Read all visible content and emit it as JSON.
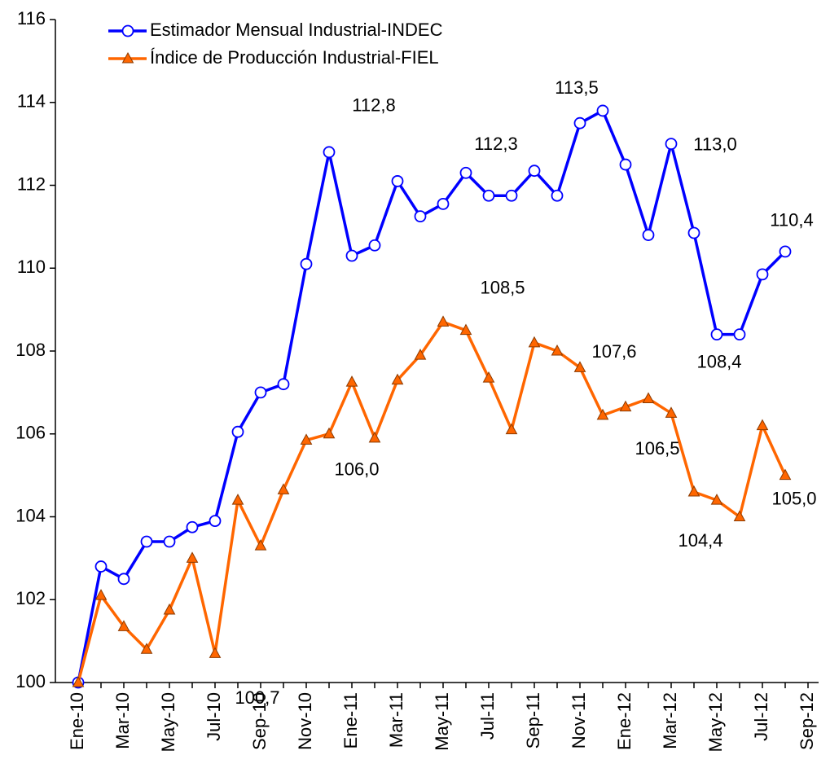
{
  "chart_data": {
    "type": "line",
    "categories": [
      "Ene-10",
      null,
      "Mar-10",
      null,
      "May-10",
      null,
      "Jul-10",
      null,
      "Sep-10",
      null,
      "Nov-10",
      null,
      "Ene-11",
      null,
      "Mar-11",
      null,
      "May-11",
      null,
      "Jul-11",
      null,
      "Sep-11",
      null,
      "Nov-11",
      null,
      "Ene-12",
      null,
      "Mar-12",
      null,
      "May-12",
      null,
      "Jul-12",
      null,
      "Sep-12"
    ],
    "series": [
      {
        "name": "Estimador Mensual Industrial-INDEC",
        "color": "#0000ff",
        "marker": "circle",
        "values": [
          100.0,
          102.8,
          102.5,
          103.4,
          103.4,
          103.75,
          103.9,
          106.05,
          107.0,
          107.2,
          110.1,
          112.8,
          110.3,
          110.55,
          112.1,
          111.25,
          111.55,
          112.3,
          111.75,
          111.75,
          112.35,
          111.75,
          113.5,
          113.8,
          112.5,
          110.8,
          113.0,
          110.85,
          108.4,
          108.4,
          109.85,
          110.4,
          null
        ],
        "value_labels": [
          null,
          null,
          null,
          null,
          null,
          null,
          null,
          null,
          null,
          null,
          null,
          "112,8",
          null,
          null,
          null,
          null,
          null,
          "112,3",
          null,
          null,
          null,
          null,
          "113,5",
          null,
          null,
          null,
          "113,0",
          null,
          "108,4",
          null,
          null,
          "110,4",
          null
        ]
      },
      {
        "name": "Índice de Producción Industrial-FIEL",
        "color": "#ff6600",
        "marker": "triangle",
        "values": [
          100.0,
          102.1,
          101.35,
          100.8,
          101.75,
          103.0,
          100.7,
          104.4,
          103.3,
          104.65,
          105.85,
          106.0,
          107.25,
          105.9,
          107.3,
          107.9,
          108.7,
          108.5,
          107.35,
          106.1,
          108.2,
          108.0,
          107.6,
          106.45,
          106.65,
          106.85,
          106.5,
          104.6,
          104.4,
          104.0,
          106.2,
          105.0,
          null
        ],
        "value_labels": [
          null,
          null,
          null,
          null,
          null,
          null,
          "100,7",
          null,
          null,
          null,
          null,
          "106,0",
          null,
          null,
          null,
          null,
          null,
          "108,5",
          null,
          null,
          null,
          null,
          "107,6",
          null,
          null,
          null,
          "106,5",
          null,
          "104,4",
          null,
          null,
          "105,0",
          null
        ]
      }
    ],
    "ylim": [
      100,
      116
    ],
    "yticks": [
      100,
      102,
      104,
      106,
      108,
      110,
      112,
      114,
      116
    ],
    "legend": "top-left",
    "grid": false
  }
}
